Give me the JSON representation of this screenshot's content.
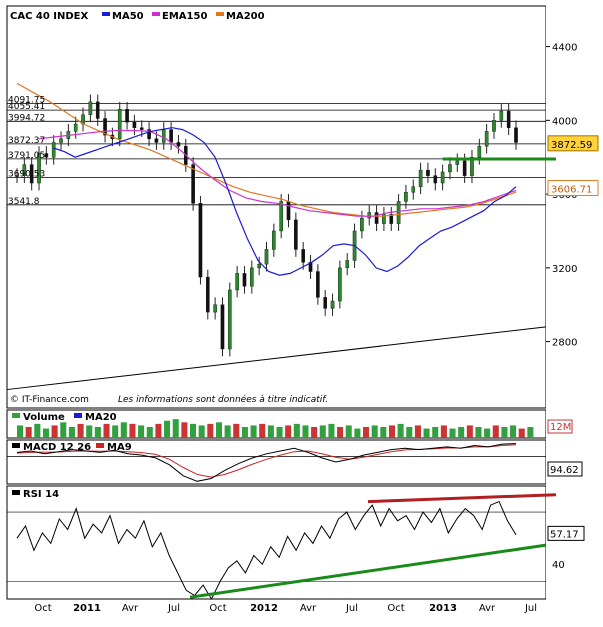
{
  "chart_data": [
    {
      "panel": "price",
      "type": "candlestick",
      "title": "CAC 40 INDEX",
      "legend": [
        {
          "label": "MA50",
          "color": "#1a1ad8"
        },
        {
          "label": "EMA150",
          "color": "#cc33cc"
        },
        {
          "label": "MA200",
          "color": "#e07820"
        }
      ],
      "ylim": [
        2440,
        4620
      ],
      "y_ticks": [
        2800,
        3200,
        3600,
        4000,
        4400
      ],
      "x_ticks": [
        "Oct",
        "2011",
        "Avr",
        "Jul",
        "Oct",
        "2012",
        "Avr",
        "Jul",
        "Oct",
        "2013",
        "Avr",
        "Jul"
      ],
      "levels": [
        {
          "label": "4091.75",
          "value": 4091.75
        },
        {
          "label": "4055.41",
          "value": 4055.41
        },
        {
          "label": "3994.72",
          "value": 3994.72
        },
        {
          "label": "3872.37",
          "value": 3872.37
        },
        {
          "label": "3791.05",
          "value": 3791.05
        },
        {
          "label": "3690.53",
          "value": 3690.53
        },
        {
          "label": "3541.8",
          "value": 3541.8
        }
      ],
      "last_price": "3872.59",
      "ma_value": "3606.71",
      "close_series": [
        3700,
        3760,
        3660,
        3820,
        3800,
        3880,
        3900,
        3940,
        3980,
        4030,
        4100,
        4010,
        3920,
        3900,
        4060,
        3990,
        3960,
        3950,
        3900,
        3880,
        3950,
        3880,
        3860,
        3760,
        3550,
        3150,
        2960,
        3000,
        2760,
        3080,
        3170,
        3100,
        3200,
        3220,
        3300,
        3400,
        3560,
        3460,
        3300,
        3230,
        3180,
        3040,
        2980,
        3020,
        3200,
        3240,
        3400,
        3470,
        3500,
        3440,
        3490,
        3440,
        3560,
        3610,
        3640,
        3730,
        3700,
        3660,
        3720,
        3760,
        3780,
        3700,
        3800,
        3860,
        3940,
        4000,
        4050,
        3960,
        3880
      ],
      "ma50": [
        3850,
        3830,
        3800,
        3820,
        3840,
        3860,
        3880,
        3900,
        3920,
        3940,
        3950,
        3960,
        3950,
        3920,
        3880,
        3800,
        3660,
        3500,
        3360,
        3240,
        3180,
        3160,
        3170,
        3200,
        3230,
        3270,
        3320,
        3330,
        3320,
        3270,
        3200,
        3180,
        3210,
        3260,
        3320,
        3360,
        3400,
        3420,
        3450,
        3480,
        3510,
        3560,
        3590,
        3640
      ],
      "ema150": [
        3900,
        3910,
        3920,
        3930,
        3940,
        3945,
        3945,
        3940,
        3900,
        3830,
        3750,
        3680,
        3620,
        3580,
        3560,
        3550,
        3530,
        3510,
        3500,
        3490,
        3480,
        3480,
        3500,
        3510,
        3520,
        3520,
        3530,
        3540,
        3560,
        3590,
        3620
      ],
      "ma200": [
        4200,
        4150,
        4100,
        4040,
        3980,
        3940,
        3900,
        3870,
        3840,
        3800,
        3760,
        3720,
        3680,
        3640,
        3610,
        3590,
        3570,
        3540,
        3520,
        3500,
        3490,
        3480,
        3480,
        3490,
        3500,
        3510,
        3520,
        3530,
        3550,
        3580,
        3610
      ],
      "source_note": "© IT-Finance.com",
      "disclaimer": "Les informations sont données à titre indicatif."
    },
    {
      "panel": "volume",
      "type": "bar",
      "legend": [
        {
          "label": "Volume",
          "color": "#33a040"
        },
        {
          "label": "MA20",
          "color": "#1a1ad8"
        }
      ],
      "value_label": "12M",
      "values": [
        8,
        7,
        9,
        6,
        8,
        10,
        7,
        9,
        8,
        7,
        9,
        8,
        10,
        9,
        8,
        7,
        9,
        11,
        12,
        10,
        9,
        8,
        9,
        10,
        8,
        9,
        7,
        8,
        9,
        8,
        7,
        8,
        9,
        8,
        7,
        8,
        9,
        7,
        8,
        6,
        7,
        8,
        7,
        8,
        9,
        7,
        8,
        6,
        7,
        8,
        6,
        7,
        8,
        7,
        6,
        8,
        7,
        8,
        6,
        7
      ]
    },
    {
      "panel": "macd",
      "type": "line",
      "legend": [
        {
          "label": "MACD 12 26",
          "color": "#000000"
        },
        {
          "label": "MA9",
          "color": "#cc2222"
        }
      ],
      "value_label": "94.62",
      "macd": [
        30,
        40,
        20,
        35,
        50,
        40,
        30,
        45,
        20,
        10,
        -10,
        -60,
        -140,
        -180,
        -160,
        -100,
        -50,
        -10,
        20,
        40,
        60,
        30,
        -10,
        -40,
        -20,
        10,
        30,
        50,
        60,
        50,
        60,
        70,
        60,
        80,
        70,
        90,
        94
      ],
      "signal": [
        25,
        30,
        32,
        33,
        38,
        40,
        38,
        40,
        35,
        28,
        15,
        -20,
        -80,
        -130,
        -150,
        -130,
        -95,
        -55,
        -20,
        10,
        35,
        40,
        20,
        -5,
        -20,
        -5,
        15,
        35,
        48,
        52,
        55,
        62,
        62,
        70,
        70,
        80,
        85
      ]
    },
    {
      "panel": "rsi",
      "type": "line",
      "legend": [
        {
          "label": "RSI 14",
          "color": "#000000"
        }
      ],
      "value_label": "57.17",
      "y_ticks": [
        40
      ],
      "values": [
        55,
        62,
        48,
        58,
        52,
        66,
        60,
        72,
        55,
        63,
        58,
        68,
        52,
        60,
        55,
        65,
        50,
        58,
        45,
        35,
        25,
        22,
        28,
        20,
        30,
        38,
        42,
        35,
        45,
        40,
        50,
        44,
        56,
        48,
        58,
        52,
        62,
        55,
        66,
        70,
        60,
        68,
        74,
        62,
        72,
        65,
        68,
        60,
        70,
        64,
        72,
        58,
        66,
        72,
        68,
        60,
        74,
        76,
        65,
        57
      ]
    }
  ]
}
